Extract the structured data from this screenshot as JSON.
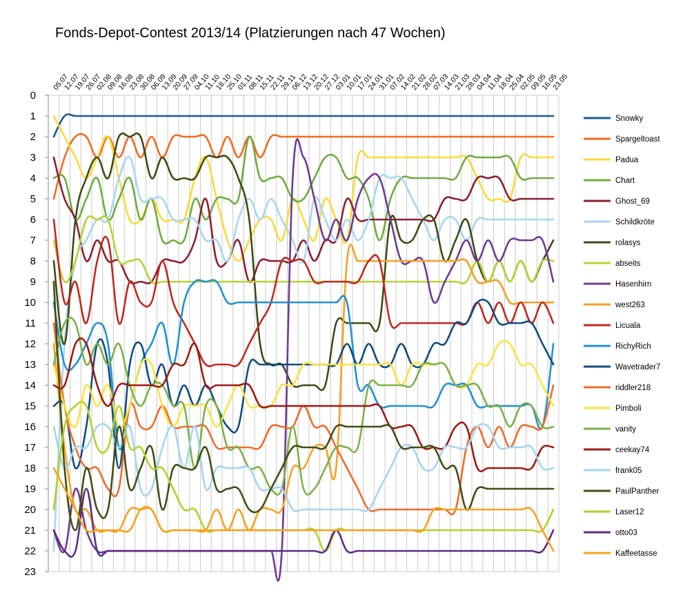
{
  "chart_data": {
    "type": "line",
    "title": "Fonds-Depot-Contest 2013/14 (Platzierungen nach 47 Wochen)",
    "x": [
      "05.07",
      "12.07",
      "19.07",
      "26.07",
      "02.08",
      "09.08",
      "16.08",
      "23.08",
      "30.08",
      "06.09",
      "13.09",
      "20.09",
      "27.09",
      "04.10",
      "11.10",
      "18.10",
      "25.10",
      "01.11",
      "08.11",
      "15.11",
      "22.11",
      "29.11",
      "06.12",
      "13.12",
      "20.12",
      "27.12",
      "03.01",
      "10.01",
      "17.01",
      "24.01",
      "31.01",
      "07.02",
      "14.02",
      "21.02",
      "28.02",
      "07.03",
      "14.03",
      "21.03",
      "28.03",
      "04.04",
      "11.04",
      "18.04",
      "25.04",
      "02.05",
      "09.05",
      "16.05",
      "23.05"
    ],
    "yticks": [
      0,
      1,
      2,
      3,
      4,
      5,
      6,
      7,
      8,
      9,
      10,
      11,
      12,
      13,
      14,
      15,
      16,
      17,
      18,
      19,
      20,
      21,
      22,
      23
    ],
    "ylim": [
      0,
      23
    ],
    "y_inverted": true,
    "grid": true,
    "legend_position": "right",
    "series": [
      {
        "name": "Snowky",
        "color": "#1b5a93",
        "values": [
          2,
          1,
          1,
          1,
          1,
          1,
          1,
          1,
          1,
          1,
          1,
          1,
          1,
          1,
          1,
          1,
          1,
          1,
          1,
          1,
          1,
          1,
          1,
          1,
          1,
          1,
          1,
          1,
          1,
          1,
          1,
          1,
          1,
          1,
          1,
          1,
          1,
          1,
          1,
          1,
          1,
          1,
          1,
          1,
          1,
          1,
          1
        ]
      },
      {
        "name": "Spargeltoast",
        "color": "#f36a1e",
        "values": [
          5,
          3,
          2,
          2,
          3,
          2,
          3,
          2,
          3,
          2,
          3,
          2,
          2,
          2,
          2,
          3,
          2,
          3,
          2,
          3,
          2,
          2,
          2,
          2,
          2,
          2,
          2,
          2,
          2,
          2,
          2,
          2,
          2,
          2,
          2,
          2,
          2,
          2,
          2,
          2,
          2,
          2,
          2,
          2,
          2,
          2,
          2
        ]
      },
      {
        "name": "Padua",
        "color": "#fcd936",
        "values": [
          1,
          2,
          3,
          4,
          3,
          2,
          4,
          6,
          6,
          5,
          6,
          6,
          6,
          4,
          3,
          5,
          7,
          8,
          7,
          6,
          6,
          7,
          5,
          6,
          7,
          5,
          6,
          7,
          3,
          3,
          3,
          3,
          3,
          3,
          3,
          3,
          3,
          3,
          3,
          4,
          5,
          5,
          5,
          3,
          3,
          3,
          3
        ]
      },
      {
        "name": "Chart",
        "color": "#6fab3f",
        "values": [
          4,
          4,
          6,
          5,
          4,
          6,
          5,
          4,
          6,
          5,
          7,
          7,
          7,
          5,
          6,
          5,
          5,
          5,
          2,
          4,
          4,
          4,
          5,
          5,
          4,
          3,
          3,
          4,
          4,
          5,
          7,
          5,
          4,
          4,
          4,
          4,
          4,
          4,
          3,
          3,
          3,
          3,
          3,
          4,
          4,
          4,
          4
        ]
      },
      {
        "name": "Ghost_69",
        "color": "#8b1e2f",
        "values": [
          3,
          5,
          6,
          8,
          7,
          8,
          8,
          9,
          9,
          9,
          8,
          8,
          8,
          7,
          5,
          8,
          8,
          7,
          9,
          8,
          8,
          8,
          8,
          7,
          8,
          7,
          7,
          5,
          6,
          6,
          6,
          6,
          6,
          6,
          6,
          6,
          5,
          5,
          5,
          4,
          4,
          4,
          5,
          5,
          5,
          5,
          5
        ]
      },
      {
        "name": "Schildkröte",
        "color": "#a6d6f2",
        "values": [
          22,
          12,
          8,
          7,
          6,
          6,
          4,
          3,
          5,
          5,
          5,
          6,
          6,
          6,
          7,
          7,
          8,
          6,
          5,
          6,
          5,
          6,
          7,
          8,
          5,
          6,
          7,
          6,
          7,
          6,
          4,
          4,
          4,
          5,
          6,
          7,
          6,
          6,
          7,
          6,
          6,
          6,
          6,
          6,
          6,
          6,
          6
        ]
      },
      {
        "name": "rolasys",
        "color": "#3e4a14",
        "values": [
          8,
          12,
          6,
          4,
          3,
          4,
          2,
          2,
          2,
          4,
          3,
          4,
          4,
          4,
          3,
          3,
          3,
          4,
          6,
          12,
          13,
          13,
          14,
          14,
          14,
          14,
          11,
          11,
          11,
          11,
          11,
          6,
          7,
          7,
          6,
          6,
          8,
          7,
          6,
          8,
          9,
          8,
          9,
          8,
          9,
          8,
          7
        ]
      },
      {
        "name": "abseits",
        "color": "#b4d334",
        "values": [
          7,
          9,
          8,
          6,
          6,
          6,
          8,
          8,
          8,
          9,
          9,
          9,
          9,
          9,
          9,
          9,
          9,
          9,
          9,
          9,
          9,
          9,
          9,
          9,
          9,
          9,
          9,
          9,
          9,
          9,
          9,
          9,
          9,
          9,
          9,
          9,
          9,
          9,
          9,
          8,
          9,
          8,
          9,
          8,
          9,
          8,
          8
        ]
      },
      {
        "name": "Hasenhirn",
        "color": "#6e3a91",
        "values": [
          21,
          22,
          19,
          21,
          22,
          22,
          22,
          22,
          22,
          22,
          22,
          22,
          22,
          22,
          22,
          22,
          22,
          22,
          22,
          22,
          22,
          22,
          4,
          3,
          5,
          7,
          6,
          7,
          5,
          4,
          4,
          6,
          8,
          8,
          8,
          10,
          9,
          8,
          7,
          8,
          7,
          8,
          7,
          7,
          7,
          7,
          9
        ]
      },
      {
        "name": "west263",
        "color": "#f7a021",
        "values": [
          12,
          17,
          20,
          20,
          21,
          21,
          21,
          20,
          20,
          20,
          21,
          21,
          21,
          21,
          21,
          20,
          21,
          20,
          21,
          20,
          20,
          20,
          18,
          18,
          17,
          17,
          18,
          8,
          8,
          8,
          8,
          8,
          8,
          8,
          8,
          8,
          8,
          8,
          8,
          9,
          9,
          9,
          10,
          10,
          10,
          10,
          10
        ]
      },
      {
        "name": "Licuala",
        "color": "#c0281d",
        "values": [
          6,
          10,
          9,
          11,
          8,
          7,
          11,
          9,
          10,
          10,
          8,
          10,
          11,
          12,
          13,
          13,
          13,
          13,
          12,
          11,
          10,
          8,
          8,
          8,
          9,
          9,
          9,
          9,
          9,
          8,
          8,
          11,
          11,
          11,
          11,
          11,
          11,
          11,
          11,
          10,
          11,
          10,
          11,
          10,
          11,
          10,
          11
        ]
      },
      {
        "name": "RichyRich",
        "color": "#1f91d3",
        "values": [
          10,
          13,
          13,
          12,
          11,
          12,
          17,
          15,
          13,
          12,
          11,
          13,
          10,
          9,
          9,
          9,
          10,
          10,
          10,
          10,
          10,
          10,
          10,
          10,
          10,
          10,
          10,
          10,
          14,
          14,
          15,
          15,
          15,
          15,
          15,
          15,
          14,
          14,
          14,
          15,
          15,
          15,
          15,
          15,
          15,
          16,
          12
        ]
      },
      {
        "name": "Wavetrader7",
        "color": "#0f4b80",
        "values": [
          15,
          15,
          18,
          16,
          12,
          13,
          18,
          13,
          12,
          14,
          13,
          15,
          14,
          15,
          14,
          15,
          16,
          16,
          13,
          13,
          13,
          13,
          13,
          13,
          13,
          13,
          13,
          12,
          13,
          12,
          13,
          13,
          12,
          13,
          13,
          12,
          12,
          11,
          11,
          10,
          10,
          11,
          11,
          11,
          11,
          12,
          13
        ]
      },
      {
        "name": "riddler218",
        "color": "#f26a2a",
        "values": [
          11,
          15,
          17,
          18,
          18,
          19,
          19,
          15,
          16,
          16,
          15,
          16,
          16,
          16,
          16,
          17,
          17,
          17,
          17,
          17,
          16,
          16,
          16,
          15,
          16,
          16,
          17,
          18,
          19,
          20,
          20,
          20,
          20,
          20,
          20,
          20,
          20,
          20,
          17,
          16,
          17,
          16,
          17,
          16,
          16,
          16,
          14
        ]
      },
      {
        "name": "Pimboli",
        "color": "#fde33d",
        "values": [
          13,
          15,
          16,
          14,
          15,
          14,
          16,
          15,
          13,
          13,
          15,
          16,
          15,
          15,
          15,
          16,
          15,
          14,
          15,
          15,
          15,
          14,
          14,
          13,
          13,
          13,
          13,
          13,
          13,
          13,
          13,
          13,
          14,
          13,
          13,
          13,
          13,
          14,
          14,
          13,
          13,
          12,
          12,
          13,
          13,
          14,
          15
        ]
      },
      {
        "name": "vanity",
        "color": "#7bb146",
        "values": [
          13,
          11,
          11,
          13,
          12,
          13,
          12,
          14,
          15,
          14,
          14,
          15,
          15,
          18,
          15,
          15,
          17,
          17,
          18,
          18,
          19,
          19,
          16,
          19,
          19,
          18,
          17,
          17,
          17,
          14,
          14,
          14,
          14,
          14,
          13,
          13,
          13,
          14,
          14,
          14,
          15,
          15,
          16,
          15,
          15,
          16,
          16
        ]
      },
      {
        "name": "ceekay74",
        "color": "#9c1a12",
        "values": [
          14,
          14,
          12,
          12,
          14,
          15,
          14,
          14,
          14,
          14,
          14,
          13,
          13,
          12,
          14,
          14,
          14,
          14,
          14,
          15,
          15,
          15,
          15,
          15,
          15,
          15,
          15,
          15,
          15,
          15,
          15,
          16,
          16,
          16,
          17,
          17,
          17,
          16,
          16,
          18,
          18,
          18,
          18,
          18,
          18,
          17,
          17
        ]
      },
      {
        "name": "frank05",
        "color": "#a3d5f0",
        "values": [
          16,
          18,
          17,
          17,
          16,
          16,
          17,
          16,
          19,
          19,
          17,
          16,
          18,
          16,
          19,
          18,
          18,
          18,
          18,
          19,
          19,
          19,
          20,
          20,
          20,
          20,
          20,
          20,
          20,
          20,
          19,
          18,
          17,
          17,
          18,
          18,
          17,
          17,
          17,
          16,
          16,
          17,
          17,
          17,
          17,
          18,
          18
        ]
      },
      {
        "name": "PaulPanther",
        "color": "#404f12",
        "values": [
          9,
          18,
          21,
          18,
          20,
          20,
          16,
          19,
          18,
          17,
          20,
          18,
          18,
          18,
          17,
          19,
          19,
          19,
          20,
          20,
          19,
          18,
          17,
          17,
          17,
          17,
          16,
          16,
          16,
          16,
          16,
          16,
          17,
          17,
          17,
          17,
          18,
          18,
          20,
          19,
          19,
          19,
          19,
          19,
          19,
          19,
          19
        ]
      },
      {
        "name": "Laser12",
        "color": "#b5d028",
        "values": [
          20,
          16,
          15,
          15,
          17,
          17,
          15,
          17,
          17,
          18,
          18,
          19,
          20,
          20,
          21,
          21,
          21,
          21,
          21,
          21,
          21,
          21,
          21,
          21,
          21,
          22,
          21,
          21,
          21,
          21,
          21,
          21,
          21,
          21,
          21,
          21,
          21,
          21,
          21,
          21,
          21,
          21,
          21,
          21,
          21,
          21,
          20
        ]
      },
      {
        "name": "otto03",
        "color": "#5e2a86",
        "values": [
          21,
          22,
          22,
          19,
          22,
          22,
          22,
          22,
          22,
          22,
          22,
          22,
          22,
          22,
          22,
          22,
          22,
          22,
          22,
          22,
          22,
          22,
          22,
          22,
          22,
          22,
          21,
          22,
          22,
          22,
          22,
          22,
          22,
          22,
          22,
          22,
          22,
          22,
          22,
          22,
          22,
          22,
          22,
          22,
          22,
          22,
          21
        ]
      },
      {
        "name": "Kaffeetasse",
        "color": "#f9a11b",
        "values": [
          18,
          19,
          20,
          21,
          21,
          21,
          21,
          21,
          20,
          20,
          21,
          21,
          21,
          21,
          21,
          21,
          21,
          21,
          21,
          21,
          21,
          21,
          21,
          21,
          21,
          21,
          21,
          21,
          21,
          21,
          21,
          21,
          21,
          21,
          21,
          20,
          20,
          20,
          20,
          20,
          20,
          20,
          20,
          20,
          20,
          21,
          22
        ]
      }
    ]
  }
}
